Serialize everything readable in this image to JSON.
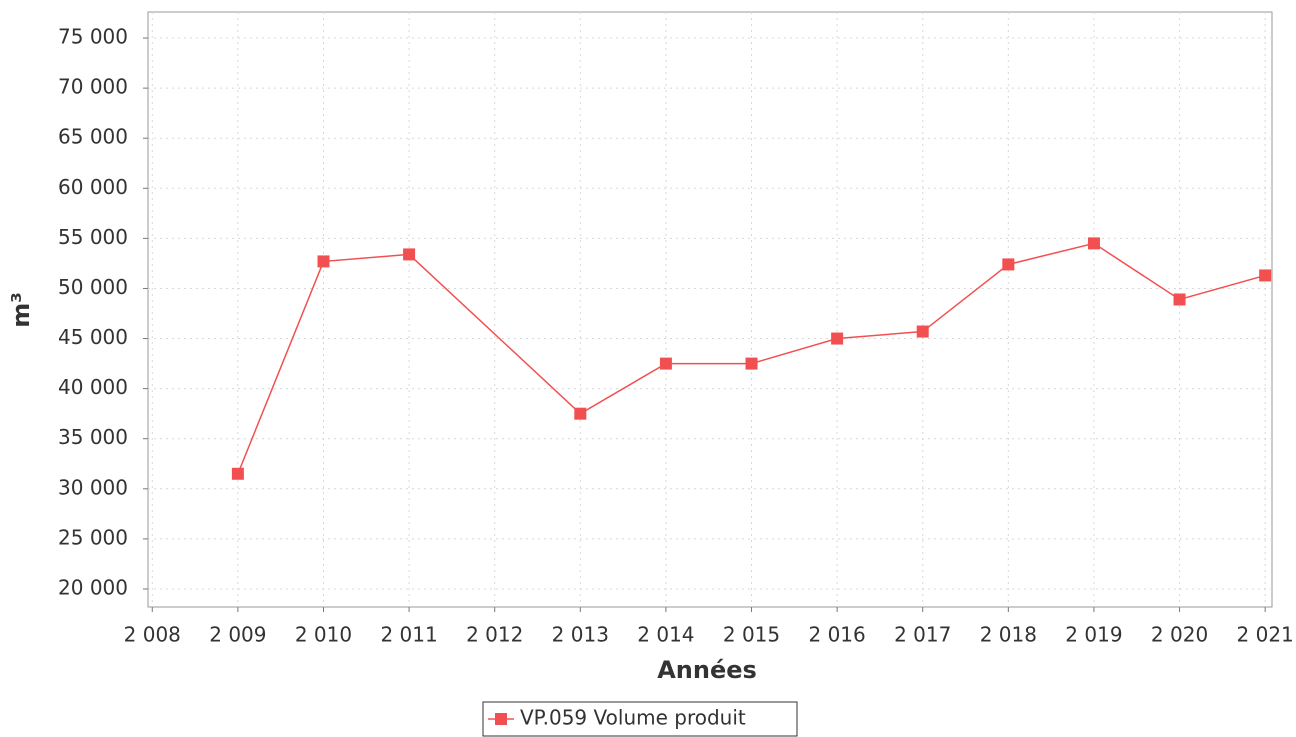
{
  "chart_data": {
    "type": "line",
    "xlabel": "Années",
    "ylabel": "m³",
    "x": [
      2009,
      2010,
      2011,
      2013,
      2014,
      2015,
      2016,
      2017,
      2018,
      2019,
      2020,
      2021
    ],
    "series": [
      {
        "name": "VP.059 Volume produit",
        "color": "#f25050",
        "values": [
          31500,
          52700,
          53400,
          37500,
          42500,
          42500,
          45000,
          45700,
          52400,
          54500,
          48900,
          51300
        ]
      }
    ],
    "xlim": [
      2007.95,
      2021.08
    ],
    "xticks": [
      {
        "value": 2008,
        "label": "2 008"
      },
      {
        "value": 2009,
        "label": "2 009"
      },
      {
        "value": 2010,
        "label": "2 010"
      },
      {
        "value": 2011,
        "label": "2 011"
      },
      {
        "value": 2012,
        "label": "2 012"
      },
      {
        "value": 2013,
        "label": "2 013"
      },
      {
        "value": 2014,
        "label": "2 014"
      },
      {
        "value": 2015,
        "label": "2 015"
      },
      {
        "value": 2016,
        "label": "2 016"
      },
      {
        "value": 2017,
        "label": "2 017"
      },
      {
        "value": 2018,
        "label": "2 018"
      },
      {
        "value": 2019,
        "label": "2 019"
      },
      {
        "value": 2020,
        "label": "2 020"
      },
      {
        "value": 2021,
        "label": "2 021"
      }
    ],
    "ylim": [
      18200,
      77600
    ],
    "yticks": [
      {
        "value": 20000,
        "label": "20 000"
      },
      {
        "value": 25000,
        "label": "25 000"
      },
      {
        "value": 30000,
        "label": "30 000"
      },
      {
        "value": 35000,
        "label": "35 000"
      },
      {
        "value": 40000,
        "label": "40 000"
      },
      {
        "value": 45000,
        "label": "45 000"
      },
      {
        "value": 50000,
        "label": "50 000"
      },
      {
        "value": 55000,
        "label": "55 000"
      },
      {
        "value": 60000,
        "label": "60 000"
      },
      {
        "value": 65000,
        "label": "65 000"
      },
      {
        "value": 70000,
        "label": "70 000"
      },
      {
        "value": 75000,
        "label": "75 000"
      }
    ],
    "grid": true,
    "legend": "bottom"
  }
}
